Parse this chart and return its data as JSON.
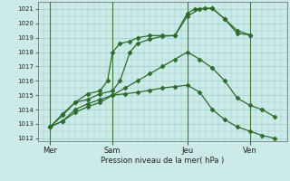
{
  "xlabel": "Pression niveau de la mer( hPa )",
  "bg_color": "#cceae7",
  "grid_color": "#99cccc",
  "line_color": "#2d6b2d",
  "ylim": [
    1011.8,
    1021.5
  ],
  "ytick_values": [
    1012,
    1013,
    1014,
    1015,
    1016,
    1017,
    1018,
    1019,
    1020,
    1021
  ],
  "xlim": [
    0,
    10
  ],
  "xtick_positions": [
    0.5,
    3.0,
    6.0,
    8.5
  ],
  "xtick_labels": [
    "Mer",
    "Sam",
    "Jeu",
    "Ven"
  ],
  "vline_positions": [
    0.5,
    3.0,
    6.0,
    8.5
  ],
  "lines": [
    {
      "x": [
        0.5,
        1.0,
        1.5,
        2.0,
        2.5,
        3.0,
        3.3,
        3.7,
        4.0,
        4.5,
        5.0,
        5.5,
        6.0,
        6.3,
        6.7,
        7.0,
        7.5,
        8.0,
        8.5
      ],
      "y": [
        1012.8,
        1013.7,
        1014.5,
        1014.7,
        1015.1,
        1015.3,
        1016.0,
        1018.0,
        1018.6,
        1018.9,
        1019.1,
        1019.15,
        1020.7,
        1021.0,
        1021.05,
        1021.05,
        1020.3,
        1019.5,
        1019.2
      ]
    },
    {
      "x": [
        0.5,
        1.0,
        1.5,
        2.0,
        2.5,
        2.8,
        3.0,
        3.3,
        3.7,
        4.0,
        4.5,
        5.0,
        5.5,
        6.0,
        6.5,
        7.0,
        7.5,
        8.0,
        8.5
      ],
      "y": [
        1012.8,
        1013.6,
        1014.5,
        1015.1,
        1015.3,
        1016.0,
        1018.0,
        1018.6,
        1018.75,
        1019.0,
        1019.15,
        1019.15,
        1019.15,
        1020.5,
        1021.0,
        1021.05,
        1020.3,
        1019.3,
        1019.2
      ]
    },
    {
      "x": [
        0.5,
        1.0,
        1.5,
        2.0,
        2.5,
        3.0,
        3.5,
        4.0,
        4.5,
        5.0,
        5.5,
        6.0,
        6.5,
        7.0,
        7.5,
        8.0,
        8.5,
        9.0,
        9.5
      ],
      "y": [
        1012.8,
        1013.2,
        1013.8,
        1014.2,
        1014.5,
        1015.0,
        1015.5,
        1016.0,
        1016.5,
        1017.0,
        1017.5,
        1018.0,
        1017.5,
        1016.9,
        1016.0,
        1014.8,
        1014.3,
        1014.0,
        1013.5
      ]
    },
    {
      "x": [
        0.5,
        1.0,
        1.5,
        2.0,
        2.5,
        3.0,
        3.5,
        4.0,
        4.5,
        5.0,
        5.5,
        6.0,
        6.5,
        7.0,
        7.5,
        8.0,
        8.5,
        9.0,
        9.5
      ],
      "y": [
        1012.8,
        1013.2,
        1014.0,
        1014.4,
        1014.7,
        1015.0,
        1015.1,
        1015.2,
        1015.35,
        1015.5,
        1015.6,
        1015.7,
        1015.2,
        1014.0,
        1013.3,
        1012.8,
        1012.5,
        1012.2,
        1012.0
      ]
    }
  ],
  "figsize": [
    3.2,
    2.0
  ],
  "dpi": 100
}
